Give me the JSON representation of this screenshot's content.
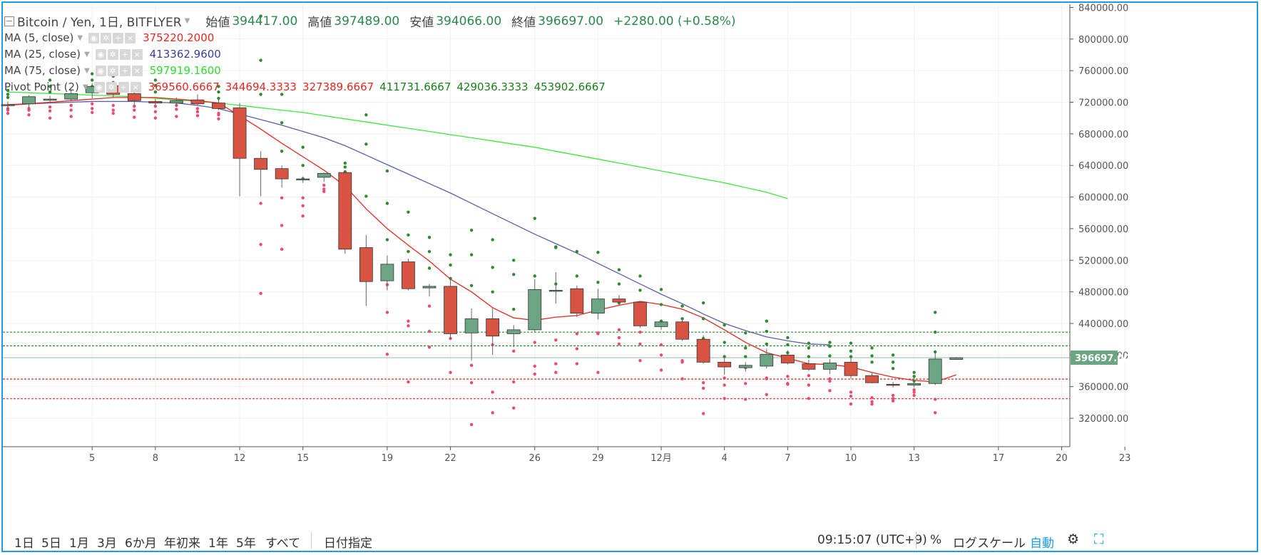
{
  "header": {
    "symbol": "Bitcoin / Yen, 1日, BITFLYER",
    "open_label": "始値",
    "open": "394417.00",
    "high_label": "高値",
    "high": "397489.00",
    "low_label": "安値",
    "low": "394066.00",
    "close_label": "終値",
    "close": "396697.00",
    "change": "+2280.00 (+0.58%)"
  },
  "legends": [
    {
      "name": "MA (5, close)",
      "values": [
        "375220.2000"
      ],
      "colors": [
        "#e8281f"
      ]
    },
    {
      "name": "MA (25, close)",
      "values": [
        "413362.9600"
      ],
      "colors": [
        "#3a3f9c"
      ]
    },
    {
      "name": "MA (75, close)",
      "values": [
        "597919.1600"
      ],
      "colors": [
        "#2fdc2f"
      ]
    },
    {
      "name": "Pivot Point (2)",
      "values": [
        "369560.6667",
        "344694.3333",
        "327389.6667",
        "411731.6667",
        "429036.3333",
        "453902.6667"
      ],
      "colors": [
        "#e8281f",
        "#e8281f",
        "#e8281f",
        "#1b7f1b",
        "#1b7f1b",
        "#1b7f1b"
      ]
    }
  ],
  "colors": {
    "up": "#6ba583",
    "down": "#d75442",
    "ma5": "#e8281f",
    "ma25": "#5a5fa8",
    "ma75": "#3ee83e",
    "pivot_support": "#e94b72",
    "pivot_resist": "#2d8a2d",
    "accent": "#1e9be9"
  },
  "chart_data": {
    "type": "candlestick",
    "ylim": [
      284000,
      844000
    ],
    "y_ticks": [
      320000,
      360000,
      400000,
      440000,
      480000,
      520000,
      560000,
      600000,
      640000,
      680000,
      720000,
      760000,
      800000,
      840000
    ],
    "y_tick_labels": [
      "320000.00",
      "360000.00",
      "400000.00",
      "440000.00",
      "480000.00",
      "520000.00",
      "560000.00",
      "600000.00",
      "640000.00",
      "680000.00",
      "720000.00",
      "760000.00",
      "800000.00",
      "840000.00"
    ],
    "last_price_label": "396697.00",
    "last_price": 396697,
    "x_ticks": [
      {
        "day": 4,
        "label": "5"
      },
      {
        "day": 7,
        "label": "8"
      },
      {
        "day": 11,
        "label": "12"
      },
      {
        "day": 14,
        "label": "15"
      },
      {
        "day": 18,
        "label": "19"
      },
      {
        "day": 21,
        "label": "22"
      },
      {
        "day": 25,
        "label": "26"
      },
      {
        "day": 28,
        "label": "29"
      },
      {
        "day": 31,
        "label": "12月"
      },
      {
        "day": 34,
        "label": "4"
      },
      {
        "day": 37,
        "label": "7"
      },
      {
        "day": 40,
        "label": "10"
      },
      {
        "day": 43,
        "label": "13"
      },
      {
        "day": 47,
        "label": "17"
      },
      {
        "day": 50,
        "label": "20"
      },
      {
        "day": 53,
        "label": "23"
      }
    ],
    "candles": [
      [
        717000,
        721000,
        711000,
        716000
      ],
      [
        718000,
        729000,
        712000,
        727000
      ],
      [
        723000,
        728000,
        720000,
        724000
      ],
      [
        724000,
        735000,
        721000,
        731000
      ],
      [
        732000,
        744000,
        725000,
        740000
      ],
      [
        741000,
        745000,
        726000,
        730000
      ],
      [
        731000,
        733000,
        716000,
        722000
      ],
      [
        721000,
        724000,
        716000,
        719000
      ],
      [
        719000,
        726000,
        715000,
        722000
      ],
      [
        723000,
        730000,
        716000,
        718000
      ],
      [
        719000,
        725000,
        710000,
        712000
      ],
      [
        713000,
        719000,
        601000,
        649000
      ],
      [
        649000,
        658000,
        601000,
        635000
      ],
      [
        636000,
        640000,
        612000,
        623000
      ],
      [
        622000,
        626000,
        618000,
        623000
      ],
      [
        625000,
        631000,
        619000,
        630000
      ],
      [
        631000,
        634000,
        528000,
        534000
      ],
      [
        536000,
        552000,
        462000,
        493000
      ],
      [
        494000,
        526000,
        482000,
        515000
      ],
      [
        518000,
        522000,
        482000,
        484000
      ],
      [
        485000,
        490000,
        474000,
        487000
      ],
      [
        487000,
        498000,
        420000,
        427000
      ],
      [
        428000,
        459000,
        393000,
        446000
      ],
      [
        446000,
        459000,
        400000,
        424000
      ],
      [
        427000,
        438000,
        410000,
        432000
      ],
      [
        432000,
        496000,
        429000,
        483000
      ],
      [
        482000,
        505000,
        465000,
        482000
      ],
      [
        484000,
        488000,
        448000,
        453000
      ],
      [
        453000,
        484000,
        445000,
        471000
      ],
      [
        471000,
        476000,
        463000,
        467000
      ],
      [
        467000,
        468000,
        435000,
        437000
      ],
      [
        436000,
        445000,
        432000,
        442000
      ],
      [
        442000,
        447000,
        418000,
        420000
      ],
      [
        420000,
        425000,
        389000,
        391000
      ],
      [
        391000,
        400000,
        375000,
        385000
      ],
      [
        384000,
        391000,
        379000,
        387000
      ],
      [
        386000,
        408000,
        383000,
        401000
      ],
      [
        400000,
        406000,
        388000,
        390000
      ],
      [
        389000,
        394000,
        380000,
        382000
      ],
      [
        382000,
        395000,
        376000,
        390000
      ],
      [
        391000,
        398000,
        370000,
        374000
      ],
      [
        374000,
        377000,
        364000,
        365000
      ],
      [
        363000,
        366000,
        359000,
        362000
      ],
      [
        362000,
        372000,
        359000,
        364000
      ],
      [
        364000,
        404000,
        362000,
        395000
      ],
      [
        394417,
        397489,
        394066,
        396697
      ]
    ],
    "ma5": [
      716000,
      718000,
      720000,
      722000,
      724000,
      726000,
      726000,
      726000,
      724000,
      722000,
      719000,
      703000,
      686000,
      668000,
      651000,
      634000,
      614000,
      585000,
      560000,
      539000,
      519000,
      496000,
      480000,
      460000,
      447000,
      444000,
      448000,
      450000,
      457000,
      463000,
      468000,
      464000,
      458000,
      447000,
      432000,
      416000,
      403000,
      396000,
      389000,
      388000,
      385000,
      378000,
      372000,
      368000,
      366000,
      375000
    ],
    "ma25": [
      717000,
      718000,
      719000,
      720000,
      721000,
      721000,
      721000,
      720000,
      719000,
      716000,
      712000,
      705000,
      698000,
      691000,
      683000,
      675000,
      665000,
      653000,
      641000,
      629000,
      617000,
      605000,
      592000,
      579000,
      566000,
      553000,
      541000,
      529000,
      516000,
      503000,
      490000,
      477000,
      465000,
      452000,
      440000,
      431000,
      423000,
      418000,
      414000,
      413000
    ],
    "ma25_start": 4,
    "ma75": [
      733000,
      732000,
      731000,
      730000,
      729000,
      728000,
      727000,
      725000,
      723000,
      721000,
      719000,
      716000,
      713000,
      710000,
      707000,
      703000,
      699000,
      695000,
      691000,
      687000,
      683000,
      679000,
      675000,
      671000,
      667000,
      663000,
      658000,
      653000,
      648000,
      643000,
      638000,
      633000,
      628000,
      623000,
      618000,
      612000,
      606000,
      598000
    ],
    "ma75_start": 0,
    "pivot_levels": {
      "S1": 369560.6667,
      "S2": 344694.3333,
      "S3": 327389.6667,
      "R1": 411731.6667,
      "R2": 429036.3333,
      "R3": 453902.6667
    },
    "pivot_dots_resist": [
      [
        0,
        [
          726000,
          730000,
          735000
        ]
      ],
      [
        2,
        [
          733000,
          740000,
          748000
        ]
      ],
      [
        4,
        [
          740000,
          748000,
          756000
        ]
      ],
      [
        5,
        [
          745000,
          753000,
          760000
        ]
      ],
      [
        7,
        [
          733000,
          741000,
          748000
        ]
      ],
      [
        10,
        [
          725000,
          733000,
          740000
        ]
      ],
      [
        12,
        [
          730000,
          773000,
          829000
        ]
      ],
      [
        13,
        [
          658000,
          694000,
          730000
        ]
      ],
      [
        14,
        [
          623000,
          640000,
          663000
        ]
      ],
      [
        16,
        [
          632000,
          638000,
          643000
        ]
      ],
      [
        17,
        [
          601000,
          667000,
          704000
        ]
      ],
      [
        18,
        [
          546000,
          592000,
          633000
        ]
      ],
      [
        19,
        [
          531000,
          552000,
          581000
        ]
      ],
      [
        20,
        [
          510000,
          531000,
          549000
        ]
      ],
      [
        21,
        [
          497000,
          514000,
          527000
        ]
      ],
      [
        22,
        [
          488000,
          527000,
          558000
        ]
      ],
      [
        23,
        [
          480000,
          511000,
          546000
        ]
      ],
      [
        24,
        [
          458000,
          502000,
          520000
        ]
      ],
      [
        25,
        [
          461000,
          500000,
          573000
        ]
      ],
      [
        26,
        [
          490000,
          536000,
          537000
        ]
      ],
      [
        27,
        [
          467000,
          500000,
          531000
        ]
      ],
      [
        28,
        [
          465000,
          492000,
          530000
        ]
      ],
      [
        29,
        [
          466000,
          490000,
          508000
        ]
      ],
      [
        30,
        [
          462000,
          482000,
          500000
        ]
      ],
      [
        31,
        [
          443000,
          464000,
          483000
        ]
      ],
      [
        32,
        [
          432000,
          446000,
          462000
        ]
      ],
      [
        33,
        [
          421000,
          446000,
          466000
        ]
      ],
      [
        34,
        [
          398000,
          416000,
          438000
        ]
      ],
      [
        35,
        [
          398000,
          409000,
          428000
        ]
      ],
      [
        36,
        [
          414000,
          430000,
          443000
        ]
      ],
      [
        37,
        [
          403000,
          413000,
          422000
        ]
      ],
      [
        38,
        [
          398000,
          409000,
          415000
        ]
      ],
      [
        39,
        [
          399000,
          411000,
          416000
        ]
      ],
      [
        40,
        [
          398000,
          405000,
          415000
        ]
      ],
      [
        41,
        [
          391000,
          399000,
          409000
        ]
      ],
      [
        42,
        [
          383000,
          391000,
          400000
        ]
      ],
      [
        43,
        [
          367000,
          373000,
          378000
        ]
      ],
      [
        44,
        [
          404000,
          429000,
          454000
        ]
      ]
    ],
    "pivot_dots_support": [
      [
        0,
        [
          710000,
          712000,
          706000
        ]
      ],
      [
        1,
        [
          712000,
          710000,
          704000
        ]
      ],
      [
        2,
        [
          714000,
          709000,
          700000
        ]
      ],
      [
        3,
        [
          716000,
          710000,
          702000
        ]
      ],
      [
        4,
        [
          718000,
          712000,
          707000
        ]
      ],
      [
        5,
        [
          716000,
          710000,
          706000
        ]
      ],
      [
        6,
        [
          715000,
          710000,
          701000
        ]
      ],
      [
        7,
        [
          715000,
          708000,
          700000
        ]
      ],
      [
        8,
        [
          716000,
          711000,
          702000
        ]
      ],
      [
        9,
        [
          712000,
          708000,
          703000
        ]
      ],
      [
        10,
        [
          706000,
          704000,
          699000
        ]
      ],
      [
        12,
        [
          592000,
          540000,
          478000
        ]
      ],
      [
        13,
        [
          599000,
          564000,
          534000
        ]
      ],
      [
        14,
        [
          599000,
          589000,
          576000
        ]
      ],
      [
        15,
        [
          610000,
          615000,
          607000
        ]
      ],
      [
        18,
        [
          454000,
          401000,
          489000
        ]
      ],
      [
        19,
        [
          437000,
          366000,
          443000
        ]
      ],
      [
        20,
        [
          430000,
          410000,
          462000
        ]
      ],
      [
        21,
        [
          421000,
          378000,
          430000
        ]
      ],
      [
        22,
        [
          387000,
          312000,
          365000
        ]
      ],
      [
        23,
        [
          413000,
          327000,
          353000
        ]
      ],
      [
        24,
        [
          405000,
          333000,
          366000
        ]
      ],
      [
        25,
        [
          416000,
          376000,
          386000
        ]
      ],
      [
        26,
        [
          419000,
          378000,
          389000
        ]
      ],
      [
        27,
        [
          427000,
          389000,
          408000
        ]
      ],
      [
        28,
        [
          427000,
          378000,
          428000
        ]
      ],
      [
        29,
        [
          432000,
          414000,
          422000
        ]
      ],
      [
        30,
        [
          414000,
          393000,
          429000
        ]
      ],
      [
        31,
        [
          413000,
          381000,
          400000
        ]
      ],
      [
        32,
        [
          393000,
          370000,
          391000
        ]
      ],
      [
        33,
        [
          365000,
          326000,
          358000
        ]
      ],
      [
        34,
        [
          371000,
          345000,
          362000
        ]
      ],
      [
        35,
        [
          384000,
          344000,
          364000
        ]
      ],
      [
        36,
        [
          371000,
          350000,
          370000
        ]
      ],
      [
        37,
        [
          364000,
          363000,
          373000
        ]
      ],
      [
        38,
        [
          362000,
          345000,
          374000
        ]
      ],
      [
        39,
        [
          370000,
          355000,
          367000
        ]
      ],
      [
        40,
        [
          353000,
          338000,
          348000
        ]
      ],
      [
        41,
        [
          346000,
          338000,
          341000
        ]
      ],
      [
        42,
        [
          345000,
          342000,
          349000
        ]
      ],
      [
        43,
        [
          353000,
          349000,
          356000
        ]
      ],
      [
        44,
        [
          344000,
          327000,
          370000
        ]
      ]
    ],
    "xlabel": "",
    "ylabel": ""
  },
  "bottom": {
    "timeframes": [
      "1日",
      "5日",
      "1月",
      "3月",
      "6か月",
      "年初来",
      "1年",
      "5年",
      "すべて"
    ],
    "goto_date": "日付指定",
    "clock": "09:15:07 (UTC+9)",
    "percent": "%",
    "log_scale": "ログスケール",
    "auto": "自動"
  }
}
